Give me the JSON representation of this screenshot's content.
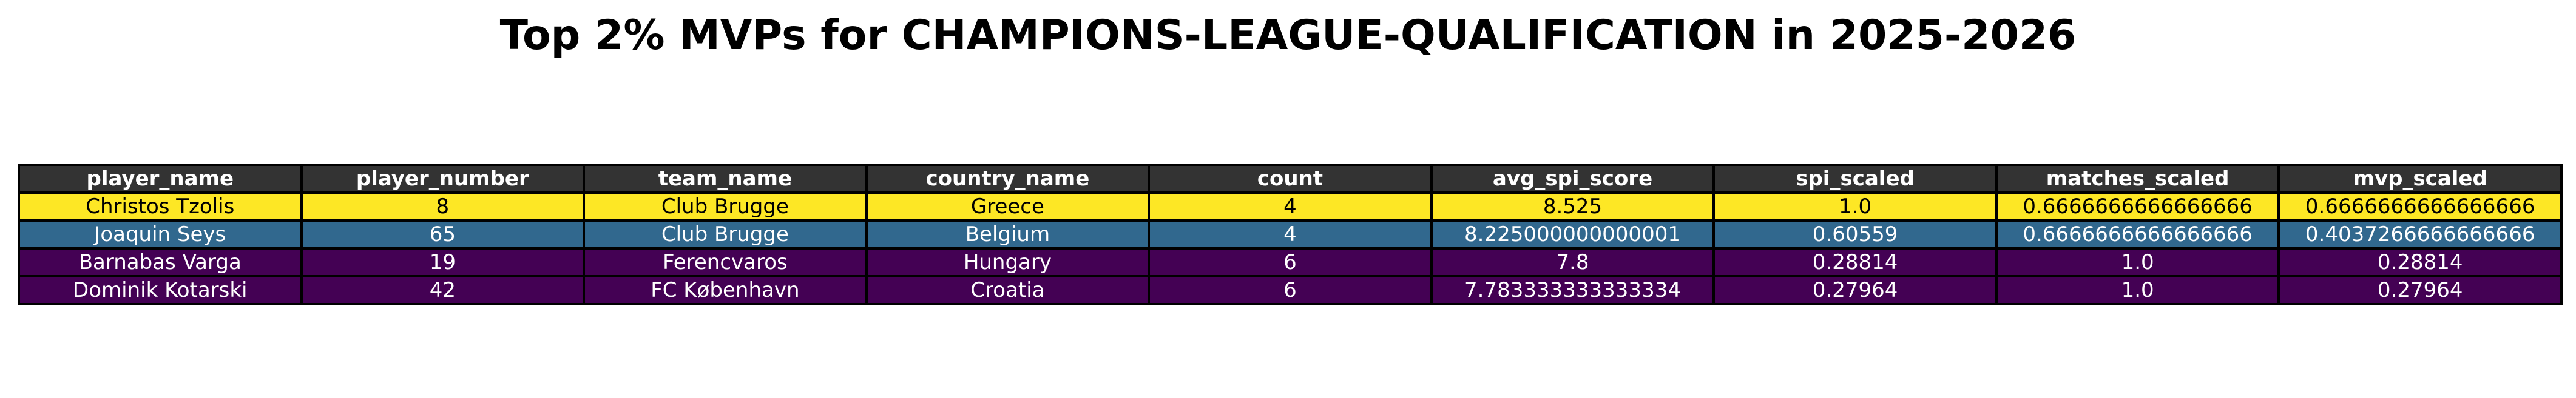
{
  "chart_data": {
    "type": "table",
    "title": "Top 2% MVPs for CHAMPIONS-LEAGUE-QUALIFICATION in 2025-2026",
    "columns": [
      "player_name",
      "player_number",
      "team_name",
      "country_name",
      "count",
      "avg_spi_score",
      "spi_scaled",
      "matches_scaled",
      "mvp_scaled"
    ],
    "rows": [
      {
        "cells": [
          "Christos Tzolis",
          "8",
          "Club Brugge",
          "Greece",
          "4",
          "8.525",
          "1.0",
          "0.6666666666666666",
          "0.6666666666666666"
        ],
        "fill": "#fde725",
        "text_color": "#000000"
      },
      {
        "cells": [
          "Joaquin Seys",
          "65",
          "Club Brugge",
          "Belgium",
          "4",
          "8.225000000000001",
          "0.60559",
          "0.6666666666666666",
          "0.4037266666666666"
        ],
        "fill": "#31688e",
        "text_color": "#ffffff"
      },
      {
        "cells": [
          "Barnabas Varga",
          "19",
          "Ferencvaros",
          "Hungary",
          "6",
          "7.8",
          "0.28814",
          "1.0",
          "0.28814"
        ],
        "fill": "#440154",
        "text_color": "#ffffff"
      },
      {
        "cells": [
          "Dominik Kotarski",
          "42",
          "FC København",
          "Croatia",
          "6",
          "7.783333333333334",
          "0.27964",
          "1.0",
          "0.27964"
        ],
        "fill": "#440154",
        "text_color": "#ffffff"
      }
    ],
    "header_fill": "#333333",
    "header_text_color": "#ffffff"
  }
}
